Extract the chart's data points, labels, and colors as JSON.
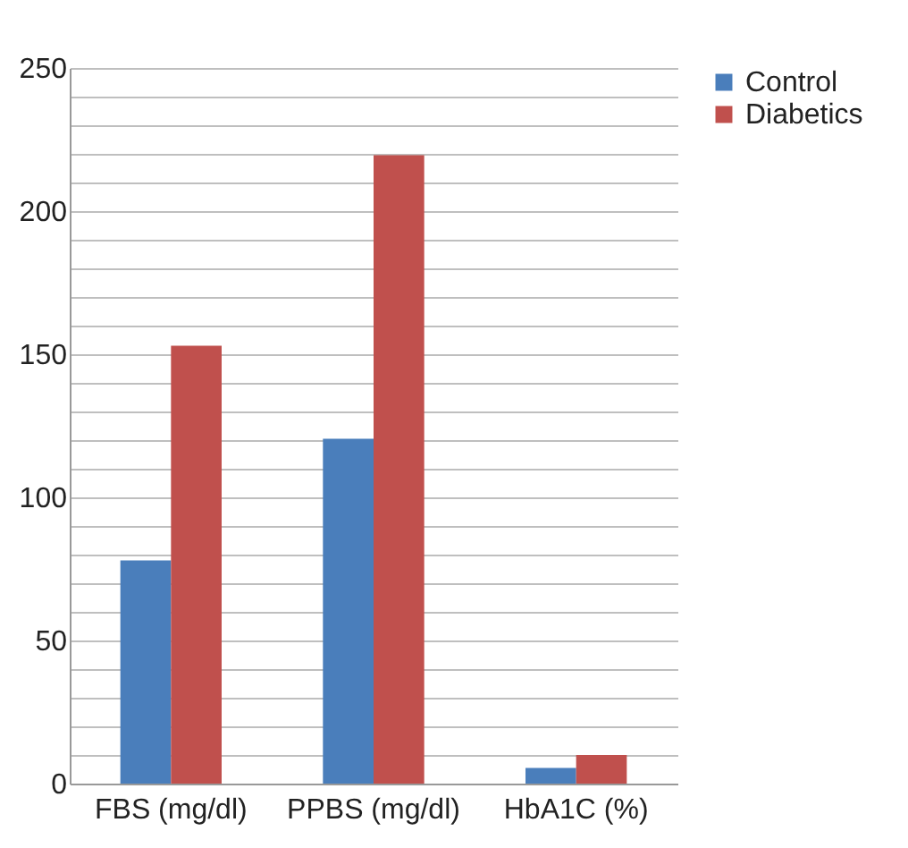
{
  "chart_data": {
    "type": "bar",
    "categories": [
      "FBS (mg/dl)",
      "PPBS (mg/dl)",
      "HbA1C (%)"
    ],
    "series": [
      {
        "name": "Control",
        "color": "#4a7ebb",
        "values": [
          78,
          120.5,
          5.5
        ]
      },
      {
        "name": "Diabetics",
        "color": "#c0504d",
        "values": [
          153,
          219.5,
          10
        ]
      }
    ],
    "ylim": [
      0,
      250
    ],
    "yticks": [
      0,
      {
        "value": 10,
        "label": null
      },
      {
        "value": 20,
        "label": null
      },
      {
        "value": 30,
        "label": null
      },
      {
        "value": 40,
        "label": null
      },
      50,
      {
        "value": 60,
        "label": null
      },
      {
        "value": 70,
        "label": null
      },
      {
        "value": 80,
        "label": null
      },
      {
        "value": 90,
        "label": null
      },
      100,
      {
        "value": 110,
        "label": null
      },
      {
        "value": 120,
        "label": null
      },
      {
        "value": 130,
        "label": null
      },
      {
        "value": 140,
        "label": null
      },
      150,
      {
        "value": 160,
        "label": null
      },
      {
        "value": 170,
        "label": null
      },
      {
        "value": 180,
        "label": null
      },
      {
        "value": 190,
        "label": null
      },
      200,
      {
        "value": 210,
        "label": null
      },
      {
        "value": 220,
        "label": null
      },
      {
        "value": 230,
        "label": null
      },
      {
        "value": 240,
        "label": null
      },
      250
    ],
    "grid": "y",
    "legend": "right"
  }
}
